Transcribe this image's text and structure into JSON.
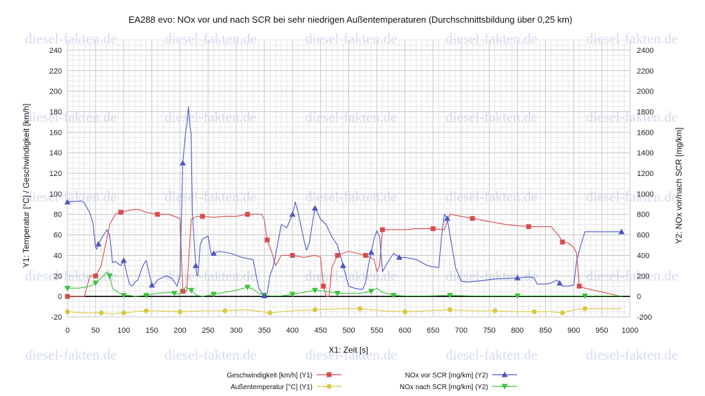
{
  "watermark": "diesel-fakten.de",
  "chart_data": {
    "type": "line",
    "title": "EA288 evo: NOx vor und nach SCR bei sehr niedrigen Außentemperaturen (Durchschnittsbildung über 0,25 km)",
    "xlabel": "X1: Zeit [s]",
    "ylabel_left": "Y1: Temperatur [°C] / Geschwindigkeit [km/h]",
    "ylabel_right": "Y2: NOx vor/nach SCR [mg/km]",
    "xlim": [
      0,
      1000
    ],
    "ylim_left": [
      -20,
      250
    ],
    "ylim_right": [
      -200,
      2500
    ],
    "x_ticks": [
      0,
      50,
      100,
      150,
      200,
      250,
      300,
      350,
      400,
      450,
      500,
      550,
      600,
      650,
      700,
      750,
      800,
      850,
      900,
      950,
      1000
    ],
    "y_left_ticks": [
      -20,
      0,
      20,
      40,
      60,
      80,
      100,
      120,
      140,
      160,
      180,
      200,
      220,
      240
    ],
    "y_right_ticks": [
      -200,
      0,
      200,
      400,
      600,
      800,
      1000,
      1200,
      1400,
      1600,
      1800,
      2000,
      2200,
      2400
    ],
    "grid": true,
    "legend_position": "bottom",
    "series": [
      {
        "name": "Geschwindigkeit [km/h] (Y1)",
        "axis": "left",
        "color": "#d84a4a",
        "marker": "square",
        "x": [
          0,
          20,
          30,
          40,
          50,
          60,
          75,
          85,
          95,
          110,
          125,
          140,
          160,
          180,
          190,
          200,
          205,
          212,
          220,
          230,
          240,
          260,
          280,
          300,
          320,
          335,
          345,
          350,
          355,
          362,
          370,
          380,
          400,
          420,
          440,
          450,
          455,
          460,
          465,
          470,
          480,
          490,
          500,
          515,
          530,
          545,
          550,
          555,
          560,
          580,
          600,
          620,
          650,
          670,
          680,
          700,
          720,
          750,
          780,
          800,
          820,
          850,
          860,
          875,
          880,
          890,
          900,
          905,
          910,
          920,
          985
        ],
        "values": [
          0,
          0,
          0,
          20,
          20,
          30,
          70,
          80,
          82,
          84,
          85,
          82,
          80,
          80,
          78,
          76,
          5,
          5,
          75,
          78,
          78,
          77,
          78,
          78,
          80,
          80,
          80,
          75,
          55,
          45,
          30,
          40,
          40,
          38,
          40,
          38,
          10,
          0,
          0,
          28,
          40,
          42,
          44,
          42,
          40,
          36,
          24,
          30,
          65,
          65,
          65,
          66,
          66,
          65,
          80,
          78,
          76,
          73,
          70,
          69,
          68,
          68,
          68,
          58,
          53,
          52,
          48,
          42,
          10,
          8,
          0
        ]
      },
      {
        "name": "Außentemperatur [°C] (Y1)",
        "axis": "left",
        "color": "#d8c83a",
        "marker": "circle",
        "x": [
          0,
          30,
          60,
          80,
          100,
          120,
          140,
          160,
          200,
          240,
          280,
          320,
          360,
          400,
          440,
          480,
          520,
          560,
          600,
          640,
          680,
          720,
          760,
          800,
          830,
          860,
          880,
          900,
          920,
          985
        ],
        "values": [
          -15,
          -16,
          -16,
          -17,
          -16,
          -15,
          -14,
          -14,
          -15,
          -14,
          -14,
          -13,
          -16,
          -14,
          -13,
          -12,
          -12,
          -14,
          -15,
          -14,
          -13,
          -14,
          -14,
          -15,
          -15,
          -15,
          -16,
          -13,
          -12,
          -12
        ]
      },
      {
        "name": "NOx vor SCR [mg/km] (Y2)",
        "axis": "right",
        "color": "#4b56c8",
        "marker": "triangle-up",
        "x": [
          0,
          25,
          30,
          40,
          45,
          50,
          52,
          55,
          60,
          70,
          75,
          80,
          85,
          95,
          100,
          110,
          115,
          120,
          125,
          135,
          140,
          150,
          155,
          160,
          175,
          185,
          195,
          200,
          205,
          210,
          213,
          215,
          218,
          220,
          222,
          228,
          230,
          232,
          236,
          240,
          250,
          255,
          260,
          270,
          290,
          310,
          330,
          340,
          345,
          350,
          355,
          360,
          365,
          370,
          380,
          390,
          400,
          405,
          410,
          420,
          425,
          430,
          435,
          440,
          445,
          450,
          460,
          465,
          470,
          480,
          490,
          500,
          510,
          520,
          525,
          530,
          535,
          540,
          545,
          550,
          555,
          560,
          570,
          580,
          590,
          600,
          620,
          640,
          660,
          665,
          670,
          675,
          680,
          690,
          700,
          710,
          730,
          760,
          800,
          820,
          830,
          835,
          850,
          860,
          870,
          875,
          880,
          890,
          900,
          905,
          910,
          920,
          985
        ],
        "values": [
          920,
          930,
          910,
          810,
          720,
          480,
          460,
          510,
          560,
          650,
          600,
          330,
          340,
          300,
          350,
          120,
          100,
          140,
          160,
          310,
          350,
          110,
          120,
          160,
          200,
          180,
          100,
          200,
          1300,
          1600,
          1700,
          1850,
          1650,
          1580,
          820,
          300,
          210,
          200,
          500,
          560,
          590,
          420,
          420,
          440,
          420,
          380,
          360,
          80,
          40,
          5,
          30,
          200,
          280,
          400,
          700,
          670,
          800,
          920,
          820,
          560,
          450,
          520,
          700,
          860,
          810,
          750,
          700,
          640,
          580,
          500,
          300,
          100,
          80,
          70,
          70,
          140,
          300,
          430,
          560,
          640,
          580,
          240,
          340,
          420,
          380,
          380,
          360,
          300,
          280,
          580,
          800,
          760,
          600,
          280,
          150,
          140,
          150,
          170,
          180,
          190,
          180,
          120,
          120,
          130,
          160,
          130,
          100,
          100,
          110,
          340,
          450,
          630,
          630
        ]
      },
      {
        "name": "NOx nach SCR [mg/km] (Y2)",
        "axis": "right",
        "color": "#3ec13e",
        "marker": "triangle-down",
        "x": [
          0,
          20,
          40,
          50,
          60,
          70,
          75,
          80,
          90,
          100,
          110,
          120,
          140,
          160,
          180,
          190,
          200,
          210,
          220,
          230,
          240,
          260,
          280,
          300,
          320,
          330,
          340,
          350,
          360,
          380,
          400,
          410,
          420,
          440,
          460,
          470,
          480,
          500,
          520,
          540,
          550,
          560,
          580,
          600,
          640,
          680,
          720,
          760,
          800,
          840,
          880,
          920,
          985
        ],
        "values": [
          80,
          80,
          100,
          130,
          180,
          240,
          200,
          80,
          40,
          10,
          10,
          0,
          10,
          30,
          40,
          30,
          20,
          90,
          60,
          10,
          0,
          20,
          40,
          60,
          90,
          70,
          30,
          10,
          5,
          5,
          20,
          30,
          40,
          60,
          50,
          40,
          30,
          30,
          30,
          50,
          80,
          40,
          10,
          5,
          5,
          10,
          5,
          5,
          5,
          5,
          5,
          5,
          5
        ]
      }
    ]
  }
}
